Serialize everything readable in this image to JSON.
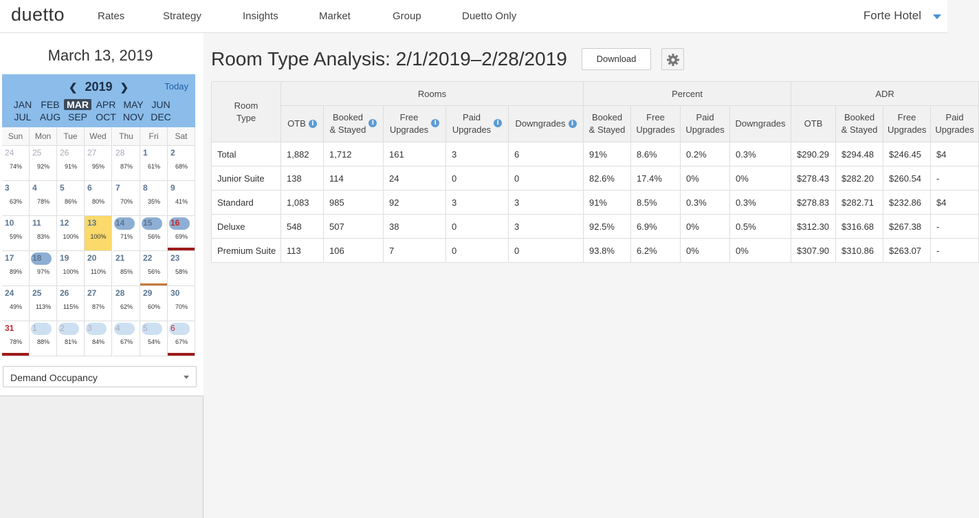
{
  "nav": {
    "logo": "duetto",
    "items": [
      "Rates",
      "Strategy",
      "Insights",
      "Market",
      "Group",
      "Duetto Only"
    ],
    "hotel": "Forte Hotel"
  },
  "sidebar": {
    "current_date": "March 13, 2019",
    "year": "2019",
    "today_label": "Today",
    "months_row1": [
      "JAN",
      "FEB",
      "MAR",
      "APR",
      "MAY",
      "JUN"
    ],
    "months_row2": [
      "JUL",
      "AUG",
      "SEP",
      "OCT",
      "NOV",
      "DEC"
    ],
    "selected_month": "MAR",
    "dow": [
      "Sun",
      "Mon",
      "Tue",
      "Wed",
      "Thu",
      "Fri",
      "Sat"
    ],
    "weeks": [
      [
        {
          "d": "24",
          "p": "74%",
          "o": 1
        },
        {
          "d": "25",
          "p": "92%",
          "o": 1
        },
        {
          "d": "26",
          "p": "91%",
          "o": 1
        },
        {
          "d": "27",
          "p": "95%",
          "o": 1
        },
        {
          "d": "28",
          "p": "87%",
          "o": 1
        },
        {
          "d": "1",
          "p": "61%"
        },
        {
          "d": "2",
          "p": "68%"
        }
      ],
      [
        {
          "d": "3",
          "p": "63%"
        },
        {
          "d": "4",
          "p": "78%"
        },
        {
          "d": "5",
          "p": "86%"
        },
        {
          "d": "6",
          "p": "80%"
        },
        {
          "d": "7",
          "p": "70%"
        },
        {
          "d": "8",
          "p": "35%"
        },
        {
          "d": "9",
          "p": "41%"
        }
      ],
      [
        {
          "d": "10",
          "p": "59%"
        },
        {
          "d": "11",
          "p": "83%"
        },
        {
          "d": "12",
          "p": "100%"
        },
        {
          "d": "13",
          "p": "100%",
          "t": 1
        },
        {
          "d": "14",
          "p": "71%",
          "pill": "dark"
        },
        {
          "d": "15",
          "p": "56%",
          "pill": "dark"
        },
        {
          "d": "16",
          "p": "69%",
          "pill": "dark",
          "r": 1,
          "rb": 1
        }
      ],
      [
        {
          "d": "17",
          "p": "89%"
        },
        {
          "d": "18",
          "p": "97%",
          "pill": "dark"
        },
        {
          "d": "19",
          "p": "100%"
        },
        {
          "d": "20",
          "p": "110%"
        },
        {
          "d": "21",
          "p": "85%"
        },
        {
          "d": "22",
          "p": "56%",
          "ob": 1
        },
        {
          "d": "23",
          "p": "58%"
        }
      ],
      [
        {
          "d": "24",
          "p": "49%"
        },
        {
          "d": "25",
          "p": "113%"
        },
        {
          "d": "26",
          "p": "115%"
        },
        {
          "d": "27",
          "p": "87%"
        },
        {
          "d": "28",
          "p": "62%"
        },
        {
          "d": "29",
          "p": "60%"
        },
        {
          "d": "30",
          "p": "70%"
        }
      ],
      [
        {
          "d": "31",
          "p": "78%",
          "r": 1,
          "rb": 1
        },
        {
          "d": "1",
          "p": "88%",
          "o": 1,
          "pill": "light"
        },
        {
          "d": "2",
          "p": "81%",
          "o": 1,
          "pill": "light"
        },
        {
          "d": "3",
          "p": "84%",
          "o": 1,
          "pill": "light"
        },
        {
          "d": "4",
          "p": "67%",
          "o": 1,
          "pill": "light"
        },
        {
          "d": "5",
          "p": "54%",
          "o": 1,
          "pill": "light"
        },
        {
          "d": "6",
          "p": "67%",
          "o": 1,
          "r": 1,
          "pill": "light",
          "rb": 1
        }
      ]
    ],
    "select_value": "Demand Occupancy"
  },
  "main": {
    "title": "Room Type Analysis: 2/1/2019–2/28/2019",
    "download_label": "Download",
    "table": {
      "room_type_header": "Room Type",
      "groups": [
        "Rooms",
        "Percent",
        "ADR"
      ],
      "rooms_cols": [
        "OTB",
        "Booked & Stayed",
        "Free Upgrades",
        "Paid Upgrades",
        "Downgrades"
      ],
      "percent_cols": [
        "Booked & Stayed",
        "Free Upgrades",
        "Paid Upgrades",
        "Downgrades"
      ],
      "adr_cols": [
        "OTB",
        "Booked & Stayed",
        "Free Upgrades",
        "Paid Upgrades"
      ],
      "rows": [
        {
          "name": "Total",
          "rooms": [
            "1,882",
            "1,712",
            "161",
            "3",
            "6"
          ],
          "percent": [
            "91%",
            "8.6%",
            "0.2%",
            "0.3%"
          ],
          "adr": [
            "$290.29",
            "$294.48",
            "$246.45",
            "$4"
          ]
        },
        {
          "name": "Junior Suite",
          "rooms": [
            "138",
            "114",
            "24",
            "0",
            "0"
          ],
          "percent": [
            "82.6%",
            "17.4%",
            "0%",
            "0%"
          ],
          "adr": [
            "$278.43",
            "$282.20",
            "$260.54",
            "-"
          ]
        },
        {
          "name": "Standard",
          "rooms": [
            "1,083",
            "985",
            "92",
            "3",
            "3"
          ],
          "percent": [
            "91%",
            "8.5%",
            "0.3%",
            "0.3%"
          ],
          "adr": [
            "$278.83",
            "$282.71",
            "$232.86",
            "$4"
          ]
        },
        {
          "name": "Deluxe",
          "rooms": [
            "548",
            "507",
            "38",
            "0",
            "3"
          ],
          "percent": [
            "92.5%",
            "6.9%",
            "0%",
            "0.5%"
          ],
          "adr": [
            "$312.30",
            "$316.68",
            "$267.38",
            "-"
          ]
        },
        {
          "name": "Premium Suite",
          "rooms": [
            "113",
            "106",
            "7",
            "0",
            "0"
          ],
          "percent": [
            "93.8%",
            "6.2%",
            "0%",
            "0%"
          ],
          "adr": [
            "$307.90",
            "$310.86",
            "$263.07",
            "-"
          ]
        }
      ]
    }
  }
}
